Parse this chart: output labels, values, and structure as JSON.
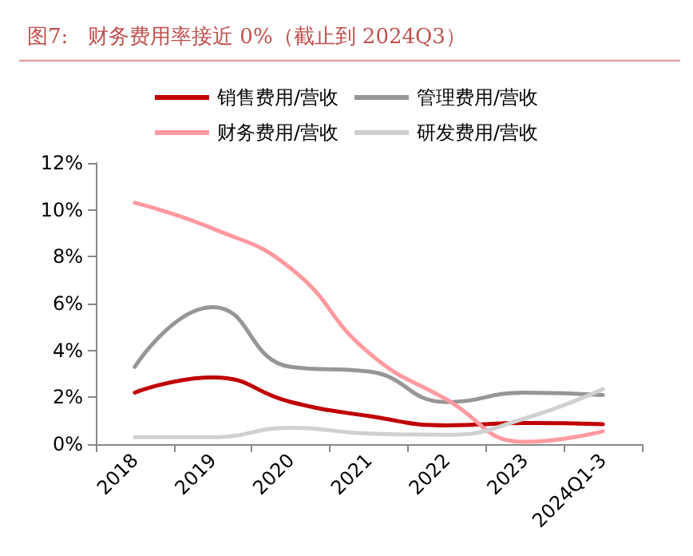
{
  "chart_data": {
    "type": "line",
    "title": "图7:   财务费用率接近 0%（截止到 2024Q3）",
    "categories": [
      "2018",
      "2019",
      "2020",
      "2021",
      "2022",
      "2023",
      "2024Q1-3"
    ],
    "series": [
      {
        "name": "销售费用/营收",
        "color": "#c00000",
        "values": [
          2.2,
          2.85,
          1.8,
          1.2,
          0.8,
          0.9,
          0.85
        ]
      },
      {
        "name": "管理费用/营收",
        "color": "#969696",
        "values": [
          3.3,
          5.85,
          3.3,
          3.1,
          1.8,
          2.2,
          2.1
        ]
      },
      {
        "name": "财务费用/营收",
        "color": "#ff99a0",
        "values": [
          10.3,
          9.2,
          7.5,
          3.9,
          1.9,
          0.1,
          0.55
        ]
      },
      {
        "name": "研发费用/营收",
        "color": "#d0d0d0",
        "values": [
          0.3,
          0.3,
          0.7,
          0.45,
          0.4,
          1.1,
          2.35
        ]
      }
    ],
    "ylim": [
      0,
      12
    ],
    "yticks": [
      {
        "value": 0,
        "label": "0%"
      },
      {
        "value": 2,
        "label": "2%"
      },
      {
        "value": 4,
        "label": "4%"
      },
      {
        "value": 6,
        "label": "6%"
      },
      {
        "value": 8,
        "label": "8%"
      },
      {
        "value": 10,
        "label": "10%"
      },
      {
        "value": 12,
        "label": "12%"
      }
    ],
    "grid": false,
    "legend": "top",
    "marker": "none",
    "line_style": "solid"
  }
}
